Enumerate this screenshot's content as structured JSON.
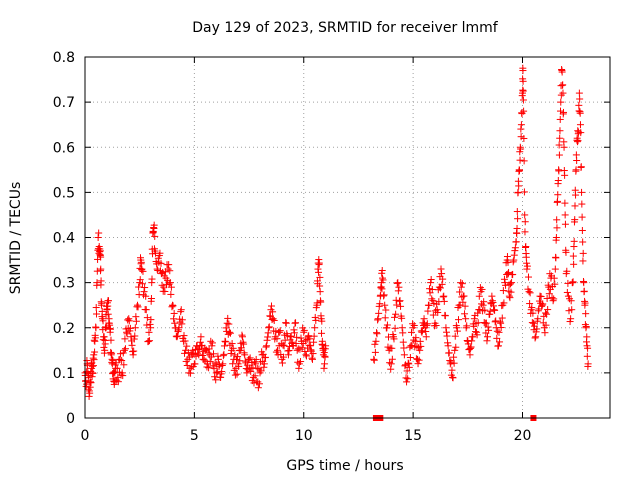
{
  "chart_data": {
    "type": "scatter",
    "title": "Day 129 of 2023, SRMTID for receiver lmmf",
    "xlabel": "GPS time / hours",
    "ylabel": "SRMTID / TECUs",
    "xlim": [
      0,
      24
    ],
    "ylim": [
      0,
      0.8
    ],
    "x_ticks": [
      0,
      5,
      10,
      15,
      20
    ],
    "x_tick_labels": [
      "0",
      "5",
      "10",
      "15",
      "20"
    ],
    "y_ticks": [
      0,
      0.1,
      0.2,
      0.3,
      0.4,
      0.5,
      0.6,
      0.7,
      0.8
    ],
    "y_tick_labels": [
      "0",
      "0.1",
      "0.2",
      "0.3",
      "0.4",
      "0.5",
      "0.6",
      "0.7",
      "0.8"
    ],
    "grid": true,
    "marker": "+",
    "color": "#ff0000",
    "series": [
      {
        "name": "SRMTID",
        "points": [
          [
            0.0,
            0.1
          ],
          [
            0.05,
            0.07
          ],
          [
            0.1,
            0.12
          ],
          [
            0.15,
            0.09
          ],
          [
            0.2,
            0.06
          ],
          [
            0.25,
            0.08
          ],
          [
            0.3,
            0.11
          ],
          [
            0.35,
            0.1
          ],
          [
            0.4,
            0.14
          ],
          [
            0.45,
            0.17
          ],
          [
            0.5,
            0.2
          ],
          [
            0.55,
            0.3
          ],
          [
            0.6,
            0.4
          ],
          [
            0.65,
            0.38
          ],
          [
            0.7,
            0.36
          ],
          [
            0.72,
            0.33
          ],
          [
            0.75,
            0.25
          ],
          [
            0.8,
            0.22
          ],
          [
            0.85,
            0.18
          ],
          [
            0.9,
            0.15
          ],
          [
            0.95,
            0.2
          ],
          [
            1.0,
            0.24
          ],
          [
            1.05,
            0.26
          ],
          [
            1.1,
            0.22
          ],
          [
            1.15,
            0.19
          ],
          [
            1.2,
            0.14
          ],
          [
            1.25,
            0.12
          ],
          [
            1.3,
            0.1
          ],
          [
            1.35,
            0.08
          ],
          [
            1.4,
            0.11
          ],
          [
            1.5,
            0.09
          ],
          [
            1.6,
            0.13
          ],
          [
            1.7,
            0.1
          ],
          [
            1.8,
            0.15
          ],
          [
            1.9,
            0.19
          ],
          [
            2.0,
            0.22
          ],
          [
            2.1,
            0.18
          ],
          [
            2.2,
            0.14
          ],
          [
            2.3,
            0.2
          ],
          [
            2.4,
            0.25
          ],
          [
            2.5,
            0.3
          ],
          [
            2.55,
            0.35
          ],
          [
            2.6,
            0.33
          ],
          [
            2.7,
            0.28
          ],
          [
            2.8,
            0.24
          ],
          [
            2.9,
            0.17
          ],
          [
            3.0,
            0.2
          ],
          [
            3.05,
            0.3
          ],
          [
            3.1,
            0.41
          ],
          [
            3.15,
            0.42
          ],
          [
            3.2,
            0.37
          ],
          [
            3.3,
            0.33
          ],
          [
            3.4,
            0.36
          ],
          [
            3.5,
            0.32
          ],
          [
            3.6,
            0.29
          ],
          [
            3.7,
            0.31
          ],
          [
            3.8,
            0.33
          ],
          [
            3.9,
            0.3
          ],
          [
            4.0,
            0.25
          ],
          [
            4.1,
            0.21
          ],
          [
            4.2,
            0.18
          ],
          [
            4.3,
            0.2
          ],
          [
            4.4,
            0.24
          ],
          [
            4.5,
            0.17
          ],
          [
            4.6,
            0.15
          ],
          [
            4.7,
            0.13
          ],
          [
            4.8,
            0.11
          ],
          [
            4.9,
            0.14
          ],
          [
            5.0,
            0.12
          ],
          [
            5.1,
            0.16
          ],
          [
            5.2,
            0.14
          ],
          [
            5.3,
            0.18
          ],
          [
            5.4,
            0.13
          ],
          [
            5.5,
            0.15
          ],
          [
            5.6,
            0.12
          ],
          [
            5.7,
            0.14
          ],
          [
            5.8,
            0.16
          ],
          [
            5.9,
            0.11
          ],
          [
            6.0,
            0.1
          ],
          [
            6.1,
            0.13
          ],
          [
            6.2,
            0.09
          ],
          [
            6.3,
            0.12
          ],
          [
            6.4,
            0.17
          ],
          [
            6.5,
            0.21
          ],
          [
            6.6,
            0.19
          ],
          [
            6.7,
            0.15
          ],
          [
            6.8,
            0.13
          ],
          [
            6.9,
            0.11
          ],
          [
            7.0,
            0.12
          ],
          [
            7.1,
            0.15
          ],
          [
            7.2,
            0.18
          ],
          [
            7.3,
            0.14
          ],
          [
            7.4,
            0.1
          ],
          [
            7.5,
            0.13
          ],
          [
            7.6,
            0.11
          ],
          [
            7.7,
            0.09
          ],
          [
            7.8,
            0.12
          ],
          [
            7.9,
            0.08
          ],
          [
            8.0,
            0.1
          ],
          [
            8.1,
            0.14
          ],
          [
            8.2,
            0.12
          ],
          [
            8.3,
            0.16
          ],
          [
            8.4,
            0.2
          ],
          [
            8.5,
            0.24
          ],
          [
            8.6,
            0.22
          ],
          [
            8.7,
            0.18
          ],
          [
            8.8,
            0.15
          ],
          [
            8.9,
            0.19
          ],
          [
            9.0,
            0.13
          ],
          [
            9.1,
            0.16
          ],
          [
            9.2,
            0.21
          ],
          [
            9.3,
            0.14
          ],
          [
            9.4,
            0.18
          ],
          [
            9.5,
            0.16
          ],
          [
            9.6,
            0.21
          ],
          [
            9.7,
            0.15
          ],
          [
            9.8,
            0.12
          ],
          [
            9.9,
            0.17
          ],
          [
            10.0,
            0.19
          ],
          [
            10.1,
            0.14
          ],
          [
            10.2,
            0.18
          ],
          [
            10.3,
            0.16
          ],
          [
            10.4,
            0.13
          ],
          [
            10.5,
            0.2
          ],
          [
            10.6,
            0.25
          ],
          [
            10.65,
            0.33
          ],
          [
            10.7,
            0.34
          ],
          [
            10.75,
            0.28
          ],
          [
            10.8,
            0.22
          ],
          [
            10.85,
            0.17
          ],
          [
            10.9,
            0.14
          ],
          [
            10.95,
            0.12
          ],
          [
            11.0,
            0.16
          ],
          [
            13.2,
            0.13
          ],
          [
            13.3,
            0.17
          ],
          [
            13.4,
            0.22
          ],
          [
            13.5,
            0.27
          ],
          [
            13.55,
            0.3
          ],
          [
            13.6,
            0.31
          ],
          [
            13.7,
            0.25
          ],
          [
            13.8,
            0.2
          ],
          [
            13.9,
            0.15
          ],
          [
            14.0,
            0.12
          ],
          [
            14.1,
            0.18
          ],
          [
            14.2,
            0.23
          ],
          [
            14.3,
            0.3
          ],
          [
            14.4,
            0.26
          ],
          [
            14.5,
            0.2
          ],
          [
            14.6,
            0.14
          ],
          [
            14.7,
            0.08
          ],
          [
            14.8,
            0.12
          ],
          [
            14.9,
            0.16
          ],
          [
            15.0,
            0.2
          ],
          [
            15.1,
            0.17
          ],
          [
            15.2,
            0.13
          ],
          [
            15.3,
            0.15
          ],
          [
            15.4,
            0.19
          ],
          [
            15.5,
            0.22
          ],
          [
            15.6,
            0.18
          ],
          [
            15.7,
            0.25
          ],
          [
            15.8,
            0.3
          ],
          [
            15.9,
            0.26
          ],
          [
            16.0,
            0.21
          ],
          [
            16.1,
            0.24
          ],
          [
            16.2,
            0.29
          ],
          [
            16.3,
            0.32
          ],
          [
            16.4,
            0.27
          ],
          [
            16.5,
            0.2
          ],
          [
            16.6,
            0.16
          ],
          [
            16.7,
            0.12
          ],
          [
            16.8,
            0.09
          ],
          [
            16.9,
            0.15
          ],
          [
            17.0,
            0.2
          ],
          [
            17.1,
            0.25
          ],
          [
            17.2,
            0.29
          ],
          [
            17.3,
            0.27
          ],
          [
            17.4,
            0.22
          ],
          [
            17.5,
            0.17
          ],
          [
            17.6,
            0.14
          ],
          [
            17.7,
            0.18
          ],
          [
            17.8,
            0.22
          ],
          [
            17.9,
            0.19
          ],
          [
            18.0,
            0.24
          ],
          [
            18.1,
            0.28
          ],
          [
            18.2,
            0.25
          ],
          [
            18.3,
            0.21
          ],
          [
            18.4,
            0.18
          ],
          [
            18.5,
            0.23
          ],
          [
            18.6,
            0.27
          ],
          [
            18.7,
            0.24
          ],
          [
            18.8,
            0.2
          ],
          [
            18.9,
            0.16
          ],
          [
            19.0,
            0.21
          ],
          [
            19.1,
            0.25
          ],
          [
            19.2,
            0.3
          ],
          [
            19.3,
            0.35
          ],
          [
            19.35,
            0.32
          ],
          [
            19.4,
            0.27
          ],
          [
            19.5,
            0.3
          ],
          [
            19.6,
            0.35
          ],
          [
            19.7,
            0.39
          ],
          [
            19.75,
            0.42
          ],
          [
            19.8,
            0.5
          ],
          [
            19.85,
            0.55
          ],
          [
            19.9,
            0.6
          ],
          [
            19.95,
            0.65
          ],
          [
            20.0,
            0.72
          ],
          [
            20.02,
            0.77
          ],
          [
            20.05,
            0.68
          ],
          [
            20.1,
            0.45
          ],
          [
            20.15,
            0.38
          ],
          [
            20.2,
            0.33
          ],
          [
            20.3,
            0.28
          ],
          [
            20.4,
            0.24
          ],
          [
            20.5,
            0.21
          ],
          [
            20.6,
            0.18
          ],
          [
            20.7,
            0.22
          ],
          [
            20.8,
            0.27
          ],
          [
            20.9,
            0.25
          ],
          [
            21.0,
            0.2
          ],
          [
            21.1,
            0.23
          ],
          [
            21.2,
            0.29
          ],
          [
            21.3,
            0.31
          ],
          [
            21.4,
            0.26
          ],
          [
            21.5,
            0.33
          ],
          [
            21.55,
            0.4
          ],
          [
            21.6,
            0.48
          ],
          [
            21.65,
            0.55
          ],
          [
            21.7,
            0.62
          ],
          [
            21.75,
            0.7
          ],
          [
            21.8,
            0.77
          ],
          [
            21.85,
            0.72
          ],
          [
            21.9,
            0.6
          ],
          [
            21.95,
            0.45
          ],
          [
            22.0,
            0.32
          ],
          [
            22.1,
            0.27
          ],
          [
            22.2,
            0.22
          ],
          [
            22.3,
            0.3
          ],
          [
            22.35,
            0.38
          ],
          [
            22.4,
            0.47
          ],
          [
            22.45,
            0.55
          ],
          [
            22.5,
            0.62
          ],
          [
            22.55,
            0.63
          ],
          [
            22.6,
            0.72
          ],
          [
            22.65,
            0.65
          ],
          [
            22.7,
            0.5
          ],
          [
            22.75,
            0.39
          ],
          [
            22.8,
            0.3
          ],
          [
            22.85,
            0.25
          ],
          [
            22.9,
            0.2
          ],
          [
            22.95,
            0.16
          ],
          [
            23.0,
            0.12
          ]
        ]
      }
    ],
    "zero_points": [
      [
        13.3,
        0.0
      ],
      [
        13.5,
        0.0
      ],
      [
        20.5,
        0.0
      ]
    ]
  }
}
